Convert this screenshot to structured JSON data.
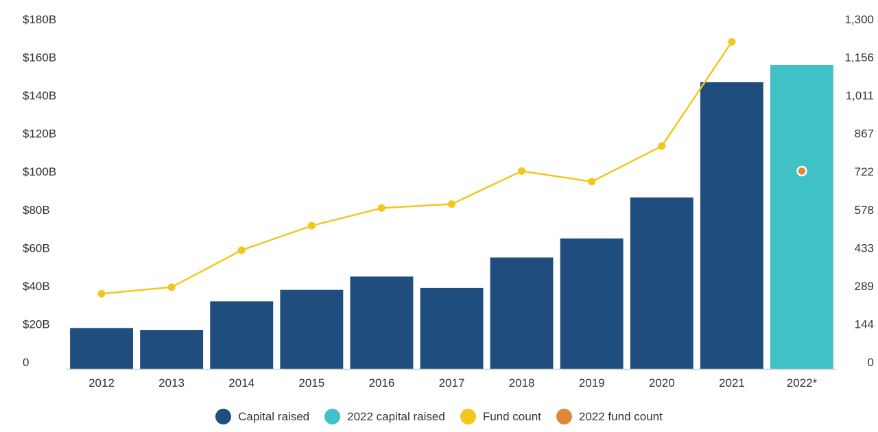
{
  "chart_data": {
    "type": "bar",
    "categories": [
      "2012",
      "2013",
      "2014",
      "2015",
      "2016",
      "2017",
      "2018",
      "2019",
      "2020",
      "2021",
      "2022*"
    ],
    "series": [
      {
        "name": "Capital raised",
        "kind": "bar",
        "axis": "left",
        "color": "#1f4e7e",
        "values": [
          21.5,
          20.5,
          35.5,
          41.5,
          48.5,
          42.5,
          58.5,
          68.5,
          90,
          150.5,
          null
        ]
      },
      {
        "name": "2022 capital raised",
        "kind": "bar",
        "axis": "left",
        "color": "#40c1c6",
        "values": [
          null,
          null,
          null,
          null,
          null,
          null,
          null,
          null,
          null,
          null,
          159.5
        ]
      },
      {
        "name": "Fund count",
        "kind": "line",
        "axis": "right",
        "color": "#f2c71c",
        "values": [
          285,
          310,
          450,
          543,
          610,
          625,
          750,
          710,
          845,
          1240,
          null
        ]
      },
      {
        "name": "2022 fund count",
        "kind": "point",
        "axis": "right",
        "color": "#e0883a",
        "values": [
          null,
          null,
          null,
          null,
          null,
          null,
          null,
          null,
          null,
          null,
          750
        ]
      }
    ],
    "y_left": {
      "ylim": [
        0,
        180
      ],
      "ticks": [
        0,
        20,
        40,
        60,
        80,
        100,
        120,
        140,
        160,
        180
      ],
      "tick_labels": [
        "0",
        "$20B",
        "$40B",
        "$60B",
        "$80B",
        "$100B",
        "$120B",
        "$140B",
        "$160B",
        "$180B"
      ]
    },
    "y_right": {
      "ylim": [
        0,
        1300
      ],
      "tick_labels": [
        "0",
        "144",
        "289",
        "433",
        "578",
        "722",
        "867",
        "1,011",
        "1,156",
        "1,300"
      ]
    },
    "title": "",
    "xlabel": "",
    "ylabel": "",
    "grid": false,
    "legend_position": "bottom"
  }
}
